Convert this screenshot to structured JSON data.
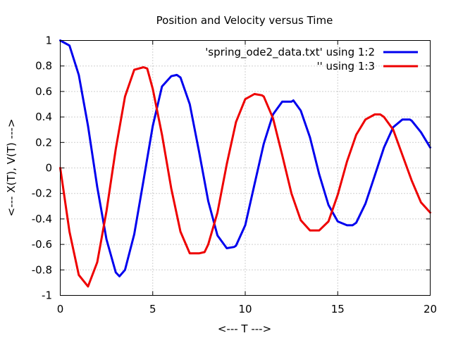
{
  "chart_data": {
    "type": "line",
    "title": "Position and Velocity versus Time",
    "xlabel": "<--- T --->",
    "ylabel": "<--- X(T), V(T) --->",
    "xlim": [
      0,
      20
    ],
    "ylim": [
      -1,
      1
    ],
    "xticks": [
      0,
      5,
      10,
      15,
      20
    ],
    "yticks": [
      -1,
      -0.8,
      -0.6,
      -0.4,
      -0.2,
      0,
      0.2,
      0.4,
      0.6,
      0.8,
      1
    ],
    "xtick_labels": [
      "0",
      "5",
      "10",
      "15",
      "20"
    ],
    "ytick_labels": [
      "-1",
      "-0.8",
      "-0.6",
      "-0.4",
      "-0.2",
      "0",
      "0.2",
      "0.4",
      "0.6",
      "0.8",
      "1"
    ],
    "grid": true,
    "legend_position": "top-right",
    "series": [
      {
        "name": "'spring_ode2_data.txt' using 1:2",
        "color": "#0000ee",
        "x": [
          0,
          0.5,
          1,
          1.5,
          2,
          2.5,
          3,
          3.2,
          3.5,
          4,
          4.5,
          5,
          5.5,
          6,
          6.3,
          6.5,
          7,
          7.5,
          8,
          8.5,
          9,
          9.4,
          9.5,
          10,
          10.5,
          11,
          11.5,
          12,
          12.5,
          12.6,
          13,
          13.5,
          14,
          14.5,
          15,
          15.5,
          15.8,
          16,
          16.5,
          17,
          17.5,
          18,
          18.5,
          18.9,
          19,
          19.5,
          20
        ],
        "y": [
          1,
          0.96,
          0.73,
          0.33,
          -0.15,
          -0.56,
          -0.82,
          -0.85,
          -0.8,
          -0.52,
          -0.1,
          0.33,
          0.64,
          0.72,
          0.73,
          0.71,
          0.5,
          0.13,
          -0.26,
          -0.53,
          -0.63,
          -0.62,
          -0.61,
          -0.45,
          -0.13,
          0.19,
          0.42,
          0.52,
          0.52,
          0.53,
          0.45,
          0.24,
          -0.05,
          -0.29,
          -0.42,
          -0.45,
          -0.45,
          -0.43,
          -0.28,
          -0.06,
          0.16,
          0.32,
          0.38,
          0.38,
          0.37,
          0.28,
          0.16
        ]
      },
      {
        "name": "'' using 1:3",
        "color": "#ee0000",
        "x": [
          0,
          0.5,
          1,
          1.5,
          2,
          2.5,
          3,
          3.5,
          4,
          4.5,
          4.7,
          5,
          5.5,
          6,
          6.5,
          7,
          7.5,
          7.8,
          8,
          8.5,
          9,
          9.5,
          10,
          10.5,
          10.9,
          11,
          11.5,
          12,
          12.5,
          13,
          13.5,
          14,
          14.5,
          15,
          15.5,
          16,
          16.5,
          17,
          17.3,
          17.5,
          18,
          18.5,
          19,
          19.5,
          20
        ],
        "y": [
          0,
          -0.5,
          -0.84,
          -0.93,
          -0.74,
          -0.34,
          0.15,
          0.56,
          0.77,
          0.79,
          0.78,
          0.62,
          0.26,
          -0.16,
          -0.5,
          -0.67,
          -0.67,
          -0.66,
          -0.6,
          -0.35,
          0.03,
          0.36,
          0.54,
          0.58,
          0.57,
          0.56,
          0.39,
          0.1,
          -0.2,
          -0.41,
          -0.49,
          -0.49,
          -0.42,
          -0.21,
          0.05,
          0.26,
          0.38,
          0.42,
          0.42,
          0.4,
          0.3,
          0.1,
          -0.1,
          -0.27,
          -0.35
        ]
      }
    ]
  }
}
